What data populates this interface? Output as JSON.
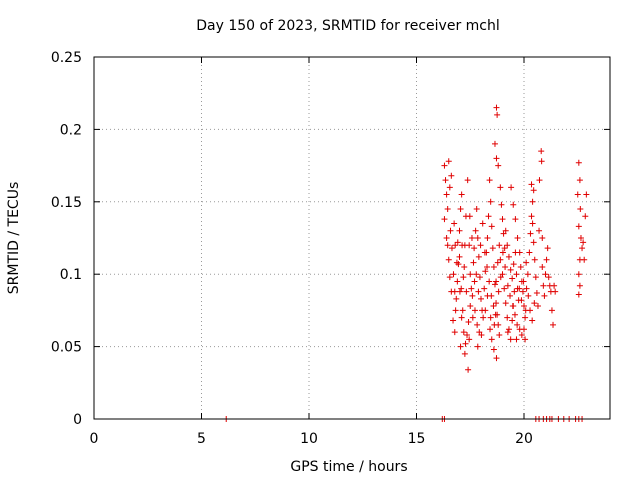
{
  "chart_data": {
    "type": "scatter",
    "title": "Day 150 of 2023, SRMTID for receiver mchl",
    "xlabel": "GPS time / hours",
    "ylabel": "SRMTID / TECUs",
    "xlim": [
      0,
      24
    ],
    "ylim": [
      0,
      0.25
    ],
    "x_ticks": [
      0,
      5,
      10,
      15,
      20
    ],
    "x_tick_labels": [
      "0",
      "5",
      "10",
      "15",
      "20"
    ],
    "y_ticks": [
      0,
      0.05,
      0.1,
      0.15,
      0.2,
      0.25
    ],
    "y_tick_labels": [
      "0",
      "0.05",
      "0.1",
      "0.15",
      "0.2",
      "0.25"
    ],
    "grid": true,
    "marker": "plus",
    "color": "#e00000",
    "series": [
      {
        "name": "SRMTID",
        "points": [
          [
            6.15,
            0.0
          ],
          [
            16.2,
            0.0
          ],
          [
            16.3,
            0.0
          ],
          [
            20.55,
            0.0
          ],
          [
            20.7,
            0.0
          ],
          [
            20.9,
            0.0
          ],
          [
            21.05,
            0.0
          ],
          [
            21.2,
            0.0
          ],
          [
            21.3,
            0.0
          ],
          [
            21.6,
            0.0
          ],
          [
            21.85,
            0.0
          ],
          [
            22.1,
            0.0
          ],
          [
            22.4,
            0.0
          ],
          [
            22.55,
            0.0
          ],
          [
            22.7,
            0.0
          ],
          [
            16.3,
            0.175
          ],
          [
            16.35,
            0.165
          ],
          [
            16.4,
            0.155
          ],
          [
            16.45,
            0.145
          ],
          [
            16.5,
            0.178
          ],
          [
            16.55,
            0.16
          ],
          [
            16.62,
            0.168
          ],
          [
            16.3,
            0.138
          ],
          [
            16.4,
            0.125
          ],
          [
            16.5,
            0.11
          ],
          [
            16.58,
            0.13
          ],
          [
            16.65,
            0.118
          ],
          [
            16.72,
            0.1
          ],
          [
            16.78,
            0.088
          ],
          [
            16.82,
            0.075
          ],
          [
            16.9,
            0.095
          ],
          [
            16.95,
            0.107
          ],
          [
            17.0,
            0.13
          ],
          [
            17.05,
            0.145
          ],
          [
            17.1,
            0.155
          ],
          [
            16.7,
            0.068
          ],
          [
            16.78,
            0.06
          ],
          [
            16.85,
            0.083
          ],
          [
            16.92,
            0.122
          ],
          [
            17.0,
            0.112
          ],
          [
            17.08,
            0.09
          ],
          [
            17.15,
            0.075
          ],
          [
            17.2,
            0.06
          ],
          [
            17.28,
            0.052
          ],
          [
            17.35,
            0.058
          ],
          [
            17.42,
            0.067
          ],
          [
            17.5,
            0.078
          ],
          [
            17.1,
            0.07
          ],
          [
            17.18,
            0.098
          ],
          [
            17.25,
            0.12
          ],
          [
            17.3,
            0.14
          ],
          [
            17.38,
            0.165
          ],
          [
            17.45,
            0.12
          ],
          [
            17.5,
            0.1
          ],
          [
            17.55,
            0.09
          ],
          [
            17.4,
            0.034
          ],
          [
            17.6,
            0.085
          ],
          [
            17.65,
            0.108
          ],
          [
            17.7,
            0.095
          ],
          [
            17.75,
            0.13
          ],
          [
            17.8,
            0.145
          ],
          [
            17.85,
            0.125
          ],
          [
            17.9,
            0.112
          ],
          [
            17.95,
            0.098
          ],
          [
            18.0,
            0.083
          ],
          [
            17.62,
            0.07
          ],
          [
            17.72,
            0.075
          ],
          [
            17.82,
            0.065
          ],
          [
            17.92,
            0.06
          ],
          [
            18.02,
            0.058
          ],
          [
            18.1,
            0.07
          ],
          [
            18.15,
            0.09
          ],
          [
            18.2,
            0.102
          ],
          [
            18.25,
            0.115
          ],
          [
            18.3,
            0.125
          ],
          [
            18.35,
            0.14
          ],
          [
            18.4,
            0.165
          ],
          [
            18.45,
            0.15
          ],
          [
            18.5,
            0.133
          ],
          [
            18.55,
            0.118
          ],
          [
            18.6,
            0.105
          ],
          [
            18.65,
            0.093
          ],
          [
            18.7,
            0.08
          ],
          [
            18.75,
            0.072
          ],
          [
            18.8,
            0.065
          ],
          [
            18.2,
            0.075
          ],
          [
            18.3,
            0.085
          ],
          [
            18.42,
            0.062
          ],
          [
            18.5,
            0.055
          ],
          [
            18.6,
            0.048
          ],
          [
            18.72,
            0.042
          ],
          [
            18.62,
            0.065
          ],
          [
            18.7,
            0.095
          ],
          [
            18.78,
            0.108
          ],
          [
            18.85,
            0.12
          ],
          [
            18.72,
            0.215
          ],
          [
            18.75,
            0.21
          ],
          [
            18.65,
            0.19
          ],
          [
            18.72,
            0.18
          ],
          [
            18.8,
            0.175
          ],
          [
            18.9,
            0.16
          ],
          [
            18.95,
            0.148
          ],
          [
            19.0,
            0.138
          ],
          [
            19.05,
            0.128
          ],
          [
            19.1,
            0.118
          ],
          [
            18.9,
            0.11
          ],
          [
            19.0,
            0.1
          ],
          [
            19.08,
            0.09
          ],
          [
            19.15,
            0.08
          ],
          [
            19.22,
            0.07
          ],
          [
            19.3,
            0.062
          ],
          [
            19.38,
            0.055
          ],
          [
            19.45,
            0.068
          ],
          [
            19.5,
            0.078
          ],
          [
            19.55,
            0.088
          ],
          [
            19.15,
            0.13
          ],
          [
            19.22,
            0.12
          ],
          [
            19.3,
            0.112
          ],
          [
            19.38,
            0.103
          ],
          [
            19.45,
            0.097
          ],
          [
            19.52,
            0.107
          ],
          [
            19.6,
            0.115
          ],
          [
            19.65,
            0.1
          ],
          [
            19.7,
            0.09
          ],
          [
            19.75,
            0.082
          ],
          [
            19.4,
            0.16
          ],
          [
            19.5,
            0.148
          ],
          [
            19.6,
            0.138
          ],
          [
            19.7,
            0.125
          ],
          [
            19.8,
            0.115
          ],
          [
            19.85,
            0.105
          ],
          [
            19.9,
            0.095
          ],
          [
            19.95,
            0.088
          ],
          [
            20.0,
            0.078
          ],
          [
            20.05,
            0.07
          ],
          [
            19.8,
            0.062
          ],
          [
            19.9,
            0.058
          ],
          [
            20.0,
            0.062
          ],
          [
            20.08,
            0.075
          ],
          [
            20.12,
            0.09
          ],
          [
            20.18,
            0.1
          ],
          [
            20.25,
            0.115
          ],
          [
            20.3,
            0.128
          ],
          [
            20.35,
            0.14
          ],
          [
            20.4,
            0.15
          ],
          [
            20.35,
            0.162
          ],
          [
            20.45,
            0.158
          ],
          [
            20.4,
            0.135
          ],
          [
            20.45,
            0.122
          ],
          [
            20.5,
            0.11
          ],
          [
            20.55,
            0.098
          ],
          [
            20.6,
            0.087
          ],
          [
            20.65,
            0.078
          ],
          [
            20.7,
            0.13
          ],
          [
            20.72,
            0.165
          ],
          [
            20.8,
            0.185
          ],
          [
            20.82,
            0.178
          ],
          [
            20.85,
            0.125
          ],
          [
            20.85,
            0.105
          ],
          [
            20.9,
            0.092
          ],
          [
            20.95,
            0.085
          ],
          [
            21.0,
            0.1
          ],
          [
            21.05,
            0.11
          ],
          [
            21.1,
            0.118
          ],
          [
            21.15,
            0.098
          ],
          [
            21.2,
            0.092
          ],
          [
            21.25,
            0.088
          ],
          [
            21.3,
            0.075
          ],
          [
            21.35,
            0.065
          ],
          [
            21.4,
            0.092
          ],
          [
            21.45,
            0.088
          ],
          [
            22.55,
            0.177
          ],
          [
            22.6,
            0.165
          ],
          [
            22.5,
            0.155
          ],
          [
            22.62,
            0.145
          ],
          [
            22.55,
            0.133
          ],
          [
            22.65,
            0.125
          ],
          [
            22.7,
            0.118
          ],
          [
            22.6,
            0.11
          ],
          [
            22.55,
            0.1
          ],
          [
            22.6,
            0.092
          ],
          [
            22.55,
            0.086
          ],
          [
            22.75,
            0.122
          ],
          [
            22.8,
            0.11
          ],
          [
            22.85,
            0.14
          ],
          [
            22.9,
            0.155
          ],
          [
            16.45,
            0.12
          ],
          [
            16.55,
            0.098
          ],
          [
            16.62,
            0.088
          ],
          [
            16.75,
            0.135
          ],
          [
            16.8,
            0.12
          ],
          [
            16.88,
            0.108
          ],
          [
            17.02,
            0.088
          ],
          [
            17.12,
            0.12
          ],
          [
            17.22,
            0.105
          ],
          [
            17.32,
            0.088
          ],
          [
            17.48,
            0.14
          ],
          [
            17.58,
            0.125
          ],
          [
            17.68,
            0.118
          ],
          [
            17.78,
            0.1
          ],
          [
            17.88,
            0.088
          ],
          [
            17.98,
            0.12
          ],
          [
            18.08,
            0.135
          ],
          [
            18.18,
            0.115
          ],
          [
            18.28,
            0.105
          ],
          [
            18.38,
            0.095
          ],
          [
            18.48,
            0.085
          ],
          [
            18.58,
            0.078
          ],
          [
            18.68,
            0.072
          ],
          [
            18.82,
            0.088
          ],
          [
            18.92,
            0.098
          ],
          [
            19.02,
            0.115
          ],
          [
            19.12,
            0.105
          ],
          [
            19.25,
            0.092
          ],
          [
            19.35,
            0.085
          ],
          [
            19.48,
            0.078
          ],
          [
            19.58,
            0.072
          ],
          [
            19.68,
            0.065
          ],
          [
            19.78,
            0.09
          ],
          [
            19.88,
            0.082
          ],
          [
            19.98,
            0.095
          ],
          [
            20.1,
            0.108
          ],
          [
            20.2,
            0.085
          ],
          [
            20.28,
            0.075
          ],
          [
            20.38,
            0.068
          ],
          [
            20.48,
            0.08
          ],
          [
            17.05,
            0.05
          ],
          [
            17.25,
            0.045
          ],
          [
            17.45,
            0.055
          ],
          [
            17.85,
            0.05
          ],
          [
            18.05,
            0.075
          ],
          [
            18.45,
            0.07
          ],
          [
            18.85,
            0.058
          ],
          [
            19.25,
            0.06
          ],
          [
            19.65,
            0.055
          ],
          [
            20.05,
            0.055
          ]
        ]
      }
    ]
  }
}
